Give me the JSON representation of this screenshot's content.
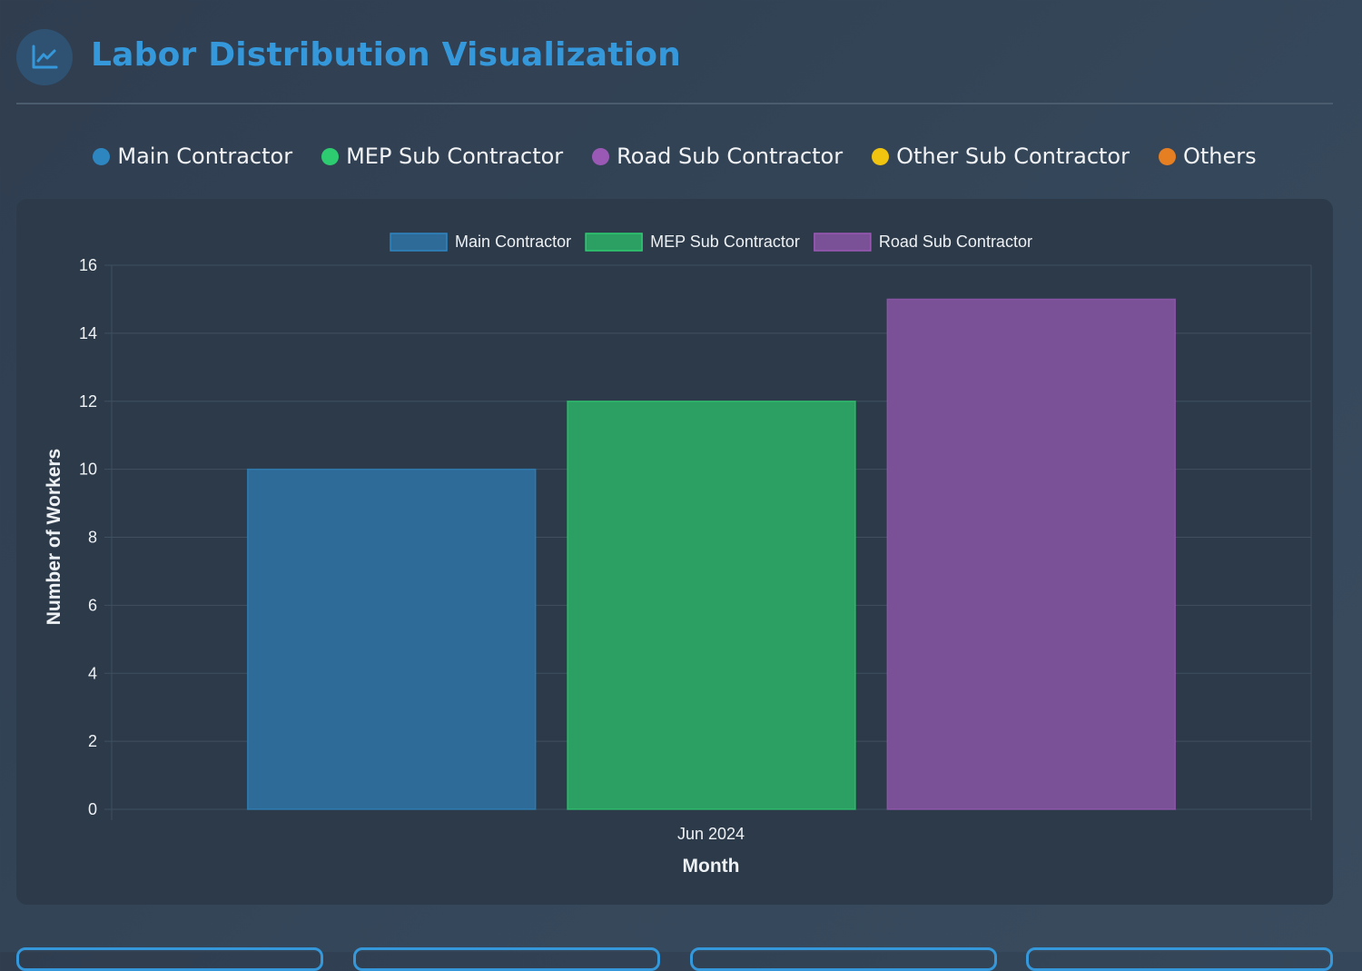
{
  "header": {
    "title": "Labor Distribution Visualization",
    "icon": "chart-line-icon"
  },
  "top_legend": [
    {
      "label": "Main Contractor",
      "color": "#2e86c1"
    },
    {
      "label": "MEP Sub Contractor",
      "color": "#2ecc71"
    },
    {
      "label": "Road Sub Contractor",
      "color": "#9b59b6"
    },
    {
      "label": "Other Sub Contractor",
      "color": "#f1c40f"
    },
    {
      "label": "Others",
      "color": "#e67e22"
    }
  ],
  "chart_data": {
    "type": "bar",
    "categories": [
      "Jun 2024"
    ],
    "series": [
      {
        "name": "Main Contractor",
        "values": [
          10
        ],
        "fill": "#2e6b99",
        "stroke": "#2e86c1"
      },
      {
        "name": "MEP Sub Contractor",
        "values": [
          12
        ],
        "fill": "#2ca063",
        "stroke": "#2ecc71"
      },
      {
        "name": "Road Sub Contractor",
        "values": [
          15
        ],
        "fill": "#7a5096",
        "stroke": "#9b59b6"
      }
    ],
    "xlabel": "Month",
    "ylabel": "Number of Workers",
    "ylim": [
      0,
      16
    ],
    "yticks": [
      "0",
      "2",
      "4",
      "6",
      "8",
      "10",
      "12",
      "14",
      "16"
    ],
    "grid": true,
    "legend_position": "top"
  }
}
